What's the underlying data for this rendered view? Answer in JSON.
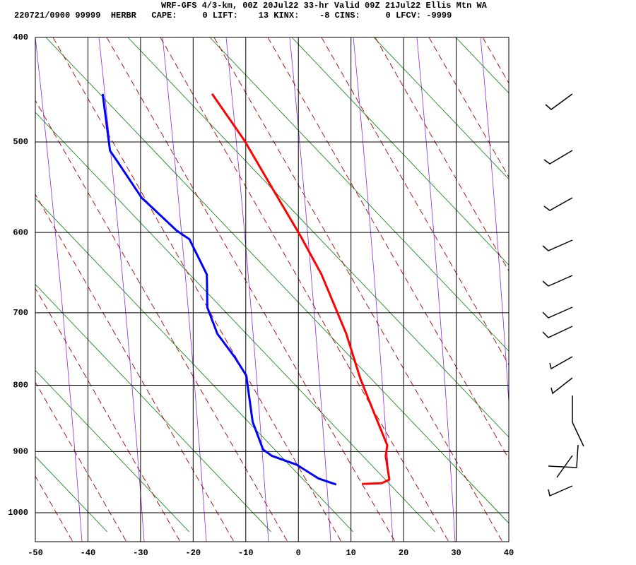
{
  "chart_data": {
    "type": "line",
    "title": "WRF-GFS 4/3-km, 00Z 20Jul22 33-hr Valid 09Z 21Jul22 Ellis Mtn WA",
    "subtitle": "220721/0900 99999  HERBR   CAPE:     0 LIFT:    13 KINX:    -8 CINS:     0 LFCV: -9999",
    "xlim": [
      -50,
      40
    ],
    "xticks": [
      -50,
      -40,
      -30,
      -20,
      -10,
      0,
      10,
      20,
      30,
      40
    ],
    "ylim": [
      1050,
      400
    ],
    "yticks": [
      400,
      500,
      600,
      700,
      800,
      900,
      1000
    ],
    "yscale": "poisson",
    "grid": true,
    "series": [
      {
        "color": "#ff0000",
        "x": [
          -16.4,
          -10.3,
          -4.3,
          0.4,
          4.4,
          9.1,
          11.8,
          14.5,
          16.9,
          16.6,
          17.3,
          15.8,
          12.1
        ],
        "values": [
          452,
          498,
          556,
          604,
          651,
          728,
          791,
          843,
          890,
          907,
          945,
          951,
          952
        ]
      },
      {
        "color": "#0000ff",
        "x": [
          -37.2,
          -35.8,
          -34.1,
          -29.8,
          -23.1,
          -20.7,
          -17.4,
          -17.3,
          -15.4,
          -12.1,
          -9.9,
          -8.7,
          -6.7,
          -5.0,
          -0.3,
          3.8,
          7.2
        ],
        "values": [
          452,
          509,
          523,
          560,
          598,
          608,
          651,
          693,
          728,
          760,
          786,
          854,
          897,
          907,
          921,
          943,
          953
        ]
      }
    ]
  }
}
